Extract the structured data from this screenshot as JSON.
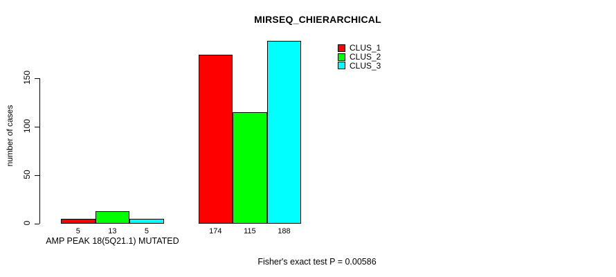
{
  "chart_data": {
    "type": "bar",
    "title": "MIRSEQ_CHIERARCHICAL",
    "ylabel": "number of cases",
    "xlabel": "",
    "yticks": [
      0,
      50,
      100,
      150
    ],
    "ylim": [
      0,
      188
    ],
    "grid": false,
    "legend_position": "top-right",
    "series": [
      {
        "name": "CLUS_1",
        "color": "#ff0000"
      },
      {
        "name": "CLUS_2",
        "color": "#00ff00"
      },
      {
        "name": "CLUS_3",
        "color": "#00ffff"
      }
    ],
    "groups": [
      {
        "label": "AMP PEAK 18(5Q21.1) MUTATED",
        "values": [
          5,
          13,
          5
        ]
      },
      {
        "label": "",
        "values": [
          174,
          115,
          188
        ]
      }
    ],
    "bar_value_labels": [
      5,
      13,
      5,
      174,
      115,
      188
    ],
    "footnote": "Fisher's exact test P = 0.00586"
  },
  "colors": {
    "background": "#ffffff",
    "axis": "#000000",
    "text": "#000000"
  }
}
